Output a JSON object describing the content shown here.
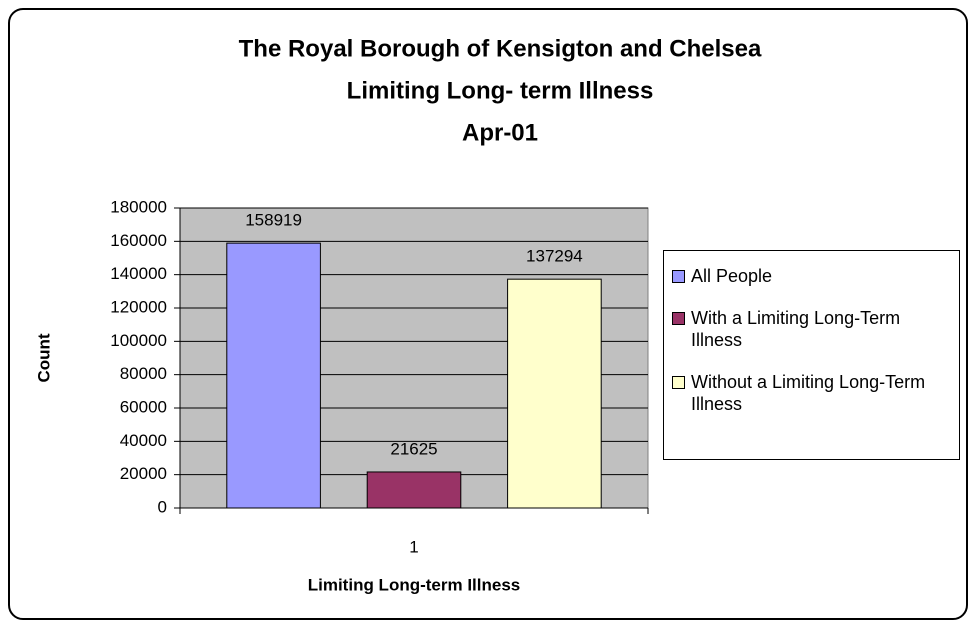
{
  "chart_data": {
    "type": "bar",
    "title": "The Royal Borough of Kensigton and Chelsea",
    "subtitle": [
      "Limiting Long- term Illness",
      "Apr-01"
    ],
    "x_label": "Limiting Long-term Illness",
    "y_label": "Count",
    "categories": [
      "1"
    ],
    "series": [
      {
        "name": "All People",
        "color": "#9999ff",
        "values": [
          158919
        ]
      },
      {
        "name": "With a Limiting Long-Term Illness",
        "color": "#993366",
        "values": [
          21625
        ]
      },
      {
        "name": "Without a Limiting Long-Term Illness",
        "color": "#ffffcc",
        "values": [
          137294
        ]
      }
    ],
    "ylim": [
      0,
      180000
    ],
    "yticks": [
      0,
      20000,
      40000,
      60000,
      80000,
      100000,
      120000,
      140000,
      160000,
      180000
    ],
    "grid": true,
    "legend": "right"
  }
}
